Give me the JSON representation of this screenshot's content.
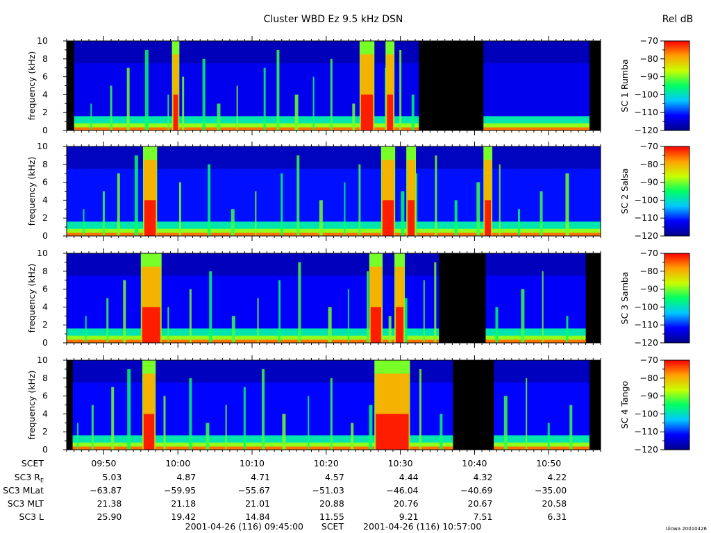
{
  "header": {
    "title": "Cluster WBD Ez 9.5 kHz DSN",
    "colorbar_title": "Rel dB"
  },
  "panel_labels": [
    "SC 1 Rumba",
    "SC 2 Salsa",
    "SC 3 Samba",
    "SC 4 Tango"
  ],
  "chart_data": {
    "type": "heatmap",
    "title": "Cluster WBD Ez 9.5 kHz DSN",
    "xlabel": "SCET",
    "ylabel": "frequency (kHz)",
    "ylim": [
      0,
      10
    ],
    "yticks": [
      "0",
      "2",
      "4",
      "6",
      "8",
      "10"
    ],
    "xlim": [
      "09:45:00",
      "10:57:00"
    ],
    "xticks": [
      "09:50",
      "10:00",
      "10:10",
      "10:20",
      "10:30",
      "10:40",
      "10:50"
    ],
    "xtick_minutes_from_start": [
      5,
      15,
      25,
      35,
      45,
      55,
      65
    ],
    "colorbar": {
      "label": "Rel dB",
      "range": [
        -120,
        -70
      ],
      "ticks": [
        "-70",
        "-80",
        "-90",
        "-100",
        "-110",
        "-120"
      ],
      "colors": [
        "#00008c",
        "#0000ff",
        "#00c8ff",
        "#00ff64",
        "#c8ff00",
        "#ffa000",
        "#ff0000"
      ]
    },
    "panels": [
      {
        "label": "SC 1 Rumba",
        "data_gaps_minutes": [
          [
            0,
            1
          ],
          [
            47.5,
            56.2
          ],
          [
            70.5,
            72
          ]
        ],
        "spike_times_minutes": [
          3.3,
          6,
          8.3,
          10.8,
          13.7,
          15.7,
          18.5,
          20.5,
          23,
          26.7,
          28.5,
          31,
          33.3,
          35.7,
          38.7,
          41,
          43,
          45,
          46.7
        ],
        "intense_bursts_minutes": [
          [
            14.2,
            15.2
          ],
          [
            39.5,
            41.5
          ],
          [
            43,
            44.2
          ]
        ],
        "background_level": 0.14
      },
      {
        "label": "SC 2 Salsa",
        "data_gaps_minutes": [],
        "spike_times_minutes": [
          2.3,
          5,
          7,
          9.4,
          12,
          15.3,
          19.2,
          22.4,
          25.5,
          29,
          31.2,
          34.3,
          37.5,
          39.5,
          42.6,
          45.3,
          47.2,
          49.8,
          52.5,
          55.5,
          58.4,
          61,
          64,
          67.5
        ],
        "intense_bursts_minutes": [
          [
            10.3,
            12.2
          ],
          [
            42.4,
            44.3
          ],
          [
            45.8,
            47.1
          ],
          [
            56.2,
            57.4
          ]
        ],
        "background_level": 0.18
      },
      {
        "label": "SC 3 Samba",
        "data_gaps_minutes": [
          [
            50.2,
            56.5
          ],
          [
            70,
            72
          ]
        ],
        "spike_times_minutes": [
          2.6,
          5.5,
          7.8,
          10.3,
          13.7,
          16.7,
          19.4,
          22.5,
          25.8,
          28.7,
          31.4,
          35.5,
          38,
          40.6,
          43.6,
          45.7,
          48.2,
          49.7,
          58,
          61.5,
          64.2,
          67.5
        ],
        "intense_bursts_minutes": [
          [
            10,
            12.8
          ],
          [
            40.8,
            42.6
          ],
          [
            44.2,
            45.6
          ]
        ],
        "background_level": 0.16
      },
      {
        "label": "SC 4 Tango",
        "data_gaps_minutes": [
          [
            0,
            0.8
          ],
          [
            52.1,
            57.6
          ],
          [
            70.5,
            72
          ]
        ],
        "spike_times_minutes": [
          1.5,
          3.5,
          6.2,
          8.4,
          11,
          13.2,
          16.7,
          19,
          21.5,
          24,
          26.5,
          29.3,
          32.6,
          35.7,
          38.5,
          41,
          44.6,
          47.7,
          50.5,
          59.2,
          62,
          65,
          68
        ],
        "intense_bursts_minutes": [
          [
            10.2,
            12
          ],
          [
            41.5,
            46.3
          ]
        ],
        "background_level": 0.17
      }
    ]
  },
  "ephemeris": {
    "rows": [
      {
        "label": "SC3 R",
        "label_sub": "E",
        "values": [
          "5.03",
          "4.87",
          "4.71",
          "4.57",
          "4.44",
          "4.32",
          "4.22"
        ]
      },
      {
        "label": "SC3 MLat",
        "values": [
          "−63.87",
          "−59.95",
          "−55.67",
          "−51.03",
          "−46.04",
          "−40.69",
          "−35.00"
        ]
      },
      {
        "label": "SC3 MLT",
        "values": [
          "21.38",
          "21.18",
          "21.01",
          "20.88",
          "20.76",
          "20.67",
          "20.58"
        ]
      },
      {
        "label": "SC3 L",
        "values": [
          "25.90",
          "19.42",
          "14.84",
          "11.55",
          "9.21",
          "7.51",
          "6.31"
        ]
      }
    ]
  },
  "footer": {
    "start": "2001-04-26 (116) 09:45:00",
    "mid": "SCET",
    "end": "2001-04-26 (116) 10:57:00",
    "credit": "Uiowa 20010426"
  }
}
